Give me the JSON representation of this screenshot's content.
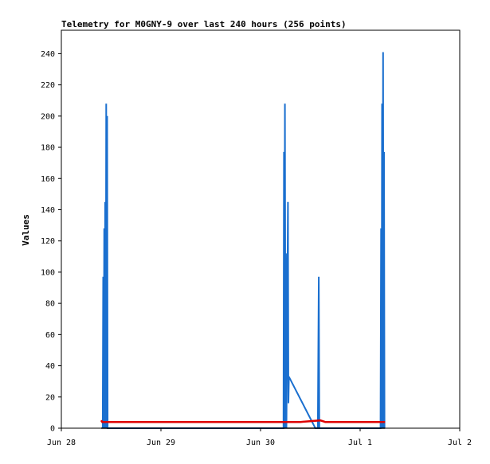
{
  "chart_data": {
    "type": "line",
    "title": "Telemetry for M0GNY-9 over last 240 hours (256 points)",
    "xlabel": "",
    "ylabel": "Values",
    "x_ticks": [
      "Jun 28",
      "Jun 29",
      "Jun 30",
      "Jul 1",
      "Jul 2"
    ],
    "x_tick_days": [
      0,
      1,
      2,
      3,
      4
    ],
    "xlim": [
      0,
      4
    ],
    "y_ticks": [
      0,
      20,
      40,
      60,
      80,
      100,
      120,
      140,
      160,
      180,
      200,
      220,
      240
    ],
    "ylim": [
      0,
      255
    ],
    "grid": false,
    "legend": "none",
    "x_value_unit": "days after Jun 28",
    "series": [
      {
        "color": "#1a6fcf",
        "points": [
          [
            0.415,
            0
          ],
          [
            0.42,
            97
          ],
          [
            0.425,
            0
          ],
          [
            0.43,
            128
          ],
          [
            0.435,
            0
          ],
          [
            0.44,
            145
          ],
          [
            0.445,
            0
          ],
          [
            0.45,
            208
          ],
          [
            0.455,
            0
          ],
          [
            0.46,
            200
          ],
          [
            0.465,
            0
          ],
          [
            2.23,
            0
          ],
          [
            2.235,
            177
          ],
          [
            2.24,
            0
          ],
          [
            2.245,
            208
          ],
          [
            2.25,
            0
          ],
          [
            2.255,
            112
          ],
          [
            2.26,
            0
          ],
          [
            2.275,
            145
          ],
          [
            2.28,
            16
          ],
          [
            2.285,
            33
          ],
          [
            2.55,
            0
          ],
          [
            2.56,
            0
          ],
          [
            2.575,
            0
          ],
          [
            2.585,
            97
          ],
          [
            2.59,
            0
          ],
          [
            3.205,
            0
          ],
          [
            3.21,
            128
          ],
          [
            3.215,
            0
          ],
          [
            3.22,
            208
          ],
          [
            3.225,
            0
          ],
          [
            3.23,
            241
          ],
          [
            3.235,
            0
          ],
          [
            3.24,
            177
          ],
          [
            3.245,
            0
          ]
        ]
      },
      {
        "color": "#dd0000",
        "points": [
          [
            0.4,
            5
          ],
          [
            0.41,
            4
          ],
          [
            2.4,
            4
          ],
          [
            2.6,
            5
          ],
          [
            2.65,
            4
          ],
          [
            3.25,
            4
          ]
        ]
      },
      {
        "color": "#000000",
        "points": [
          [
            0.4,
            0
          ],
          [
            3.25,
            0
          ]
        ]
      }
    ]
  }
}
